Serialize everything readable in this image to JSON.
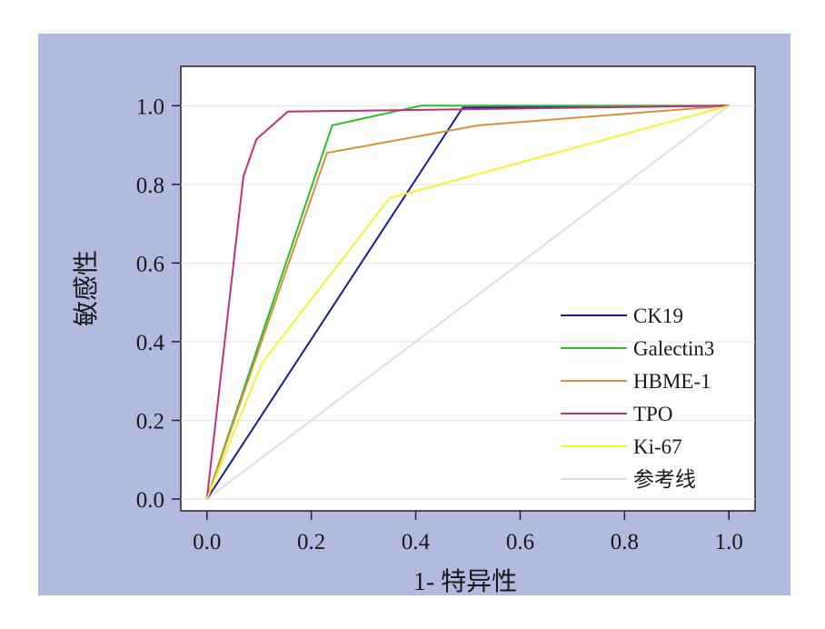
{
  "chart_data": {
    "type": "line",
    "title": "",
    "xlabel": "1- 特异性",
    "ylabel": "敏感性",
    "xlim": [
      -0.05,
      1.05
    ],
    "ylim": [
      -0.03,
      1.1
    ],
    "x_ticks": [
      "0.0",
      "0.2",
      "0.4",
      "0.6",
      "0.8",
      "1.0"
    ],
    "y_ticks": [
      "0.0",
      "0.2",
      "0.4",
      "0.6",
      "0.8",
      "1.0"
    ],
    "grid": "horizontal",
    "legend_position": "bottom-right",
    "series": [
      {
        "name": "CK19",
        "color": "#1a1a9a",
        "x": [
          0,
          0.49,
          1.0
        ],
        "y": [
          0,
          0.995,
          1.0
        ]
      },
      {
        "name": "Galectin3",
        "color": "#22c322",
        "x": [
          0,
          0.24,
          0.41,
          1.0
        ],
        "y": [
          0,
          0.95,
          1.0,
          1.0
        ]
      },
      {
        "name": "HBME-1",
        "color": "#d98f3a",
        "x": [
          0,
          0.23,
          0.52,
          1.0
        ],
        "y": [
          0,
          0.88,
          0.95,
          1.0
        ]
      },
      {
        "name": "TPO",
        "color": "#c0307a",
        "x": [
          0,
          0.07,
          0.095,
          0.155,
          1.0
        ],
        "y": [
          0,
          0.82,
          0.915,
          0.985,
          1.0
        ]
      },
      {
        "name": "Ki-67",
        "color": "#f5f22e",
        "x": [
          0,
          0.105,
          0.35,
          1.0
        ],
        "y": [
          0,
          0.345,
          0.765,
          1.0
        ]
      },
      {
        "name": "参考线",
        "color": "#dddddd",
        "x": [
          0,
          1.0
        ],
        "y": [
          0,
          1.0
        ]
      }
    ]
  }
}
